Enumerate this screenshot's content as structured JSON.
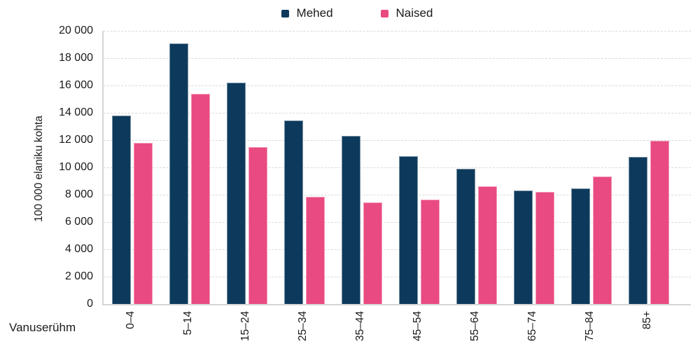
{
  "chart_data": {
    "type": "bar",
    "categories": [
      "0–4",
      "5–14",
      "15–24",
      "25–34",
      "35–44",
      "45–54",
      "55–64",
      "65–74",
      "75–84",
      "85+"
    ],
    "series": [
      {
        "name": "Mehed",
        "color": "#0d3a5c",
        "values": [
          13800,
          19100,
          16200,
          13450,
          12300,
          10800,
          9900,
          8300,
          8450,
          10750
        ]
      },
      {
        "name": "Naised",
        "color": "#e94a81",
        "values": [
          11800,
          15400,
          11500,
          7850,
          7450,
          7650,
          8600,
          8200,
          9350,
          11950
        ]
      }
    ],
    "xlabel": "Vanuserühm",
    "ylabel": "100 000 elaniku kohta",
    "ylim": [
      0,
      20000
    ],
    "ytick_step": 2000,
    "grid": "horizontal-dashed",
    "legend_position": "top-center"
  },
  "y_axis": {
    "tick_labels": [
      "20 000",
      "18 000",
      "16 000",
      "14 000",
      "12 000",
      "10 000",
      "8 000",
      "6 000",
      "4 000",
      "2 000",
      "0"
    ]
  },
  "colors": {
    "background": "#ffffff",
    "grid": "#d9d9d9",
    "axis": "#d6d6d6",
    "text": "#1a1a1a",
    "mehed": "#0d3a5c",
    "naised": "#e94a81"
  }
}
